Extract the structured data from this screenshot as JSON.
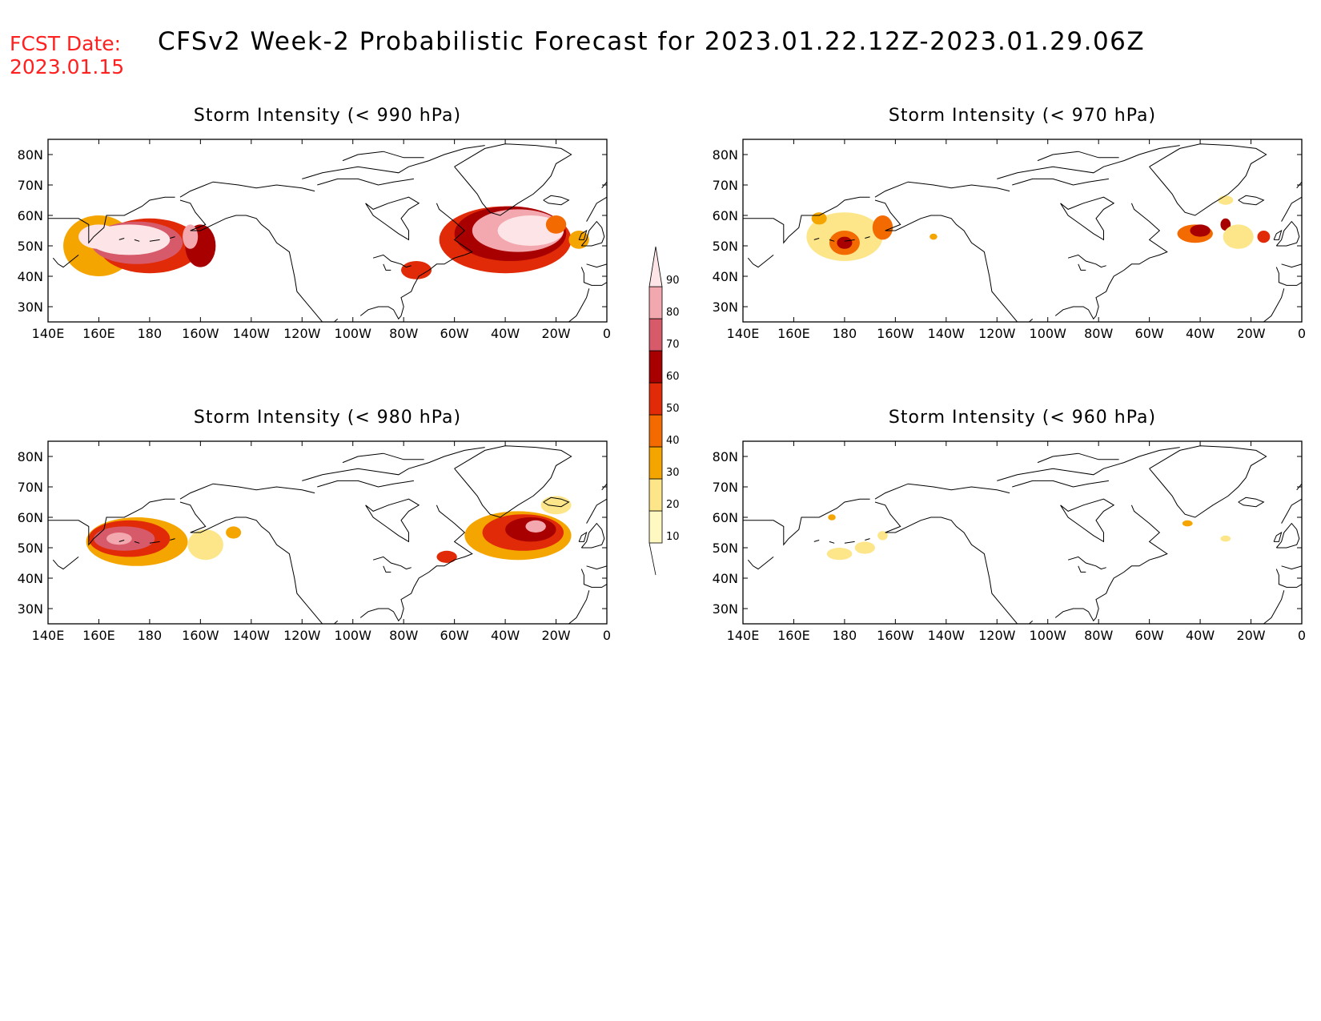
{
  "fcst_label": "FCST Date:",
  "fcst_date": "2023.01.15",
  "title": "CFSv2 Week-2 Probabilistic Forecast for 2023.01.22.12Z-2023.01.29.06Z",
  "colorbar": {
    "levels": [
      "10",
      "20",
      "30",
      "40",
      "50",
      "60",
      "70",
      "80",
      "90"
    ],
    "colors": [
      "#fff8c0",
      "#fde68a",
      "#f5a500",
      "#f36b00",
      "#e02a08",
      "#a80000",
      "#d65a6a",
      "#f2a8ae",
      "#fde4e6"
    ]
  },
  "axes": {
    "lon_ticks": [
      "140E",
      "160E",
      "180",
      "160W",
      "140W",
      "120W",
      "100W",
      "80W",
      "60W",
      "40W",
      "20W",
      "0"
    ],
    "lat_ticks": [
      "80N",
      "70N",
      "60N",
      "50N",
      "40N",
      "30N"
    ]
  },
  "panels": [
    {
      "id": "p990",
      "title": "Storm Intensity (< 990 hPa)",
      "blobs": [
        {
          "lon": 160,
          "lat": 50,
          "rlon": 14,
          "rlat": 10,
          "level": 2
        },
        {
          "lon": 180,
          "lat": 50,
          "rlon": 20,
          "rlat": 9,
          "level": 4
        },
        {
          "lon": 175,
          "lat": 51,
          "rlon": 18,
          "rlat": 7,
          "level": 6
        },
        {
          "lon": 172,
          "lat": 52,
          "rlon": 16,
          "rlat": 5,
          "level": 8
        },
        {
          "lon": 160,
          "lat": 53,
          "rlon": 8,
          "rlat": 4,
          "level": 8
        },
        {
          "lon": 200,
          "lat": 50,
          "rlon": 6,
          "rlat": 7,
          "level": 5
        },
        {
          "lon": 196,
          "lat": 53,
          "rlon": 3,
          "rlat": 4,
          "level": 7
        },
        {
          "lon": 285,
          "lat": 42,
          "rlon": 6,
          "rlat": 3,
          "level": 4
        },
        {
          "lon": 320,
          "lat": 52,
          "rlon": 26,
          "rlat": 11,
          "level": 4
        },
        {
          "lon": 322,
          "lat": 54,
          "rlon": 22,
          "rlat": 9,
          "level": 5
        },
        {
          "lon": 325,
          "lat": 55,
          "rlon": 18,
          "rlat": 7,
          "level": 7
        },
        {
          "lon": 330,
          "lat": 55,
          "rlon": 13,
          "rlat": 5,
          "level": 8
        },
        {
          "lon": 340,
          "lat": 57,
          "rlon": 4,
          "rlat": 3,
          "level": 3
        },
        {
          "lon": 349,
          "lat": 52,
          "rlon": 4,
          "rlat": 3,
          "level": 2
        }
      ]
    },
    {
      "id": "p970",
      "title": "Storm Intensity (< 970 hPa)",
      "blobs": [
        {
          "lon": 180,
          "lat": 53,
          "rlon": 15,
          "rlat": 8,
          "level": 1
        },
        {
          "lon": 180,
          "lat": 51,
          "rlon": 6,
          "rlat": 4,
          "level": 3
        },
        {
          "lon": 180,
          "lat": 51,
          "rlon": 3,
          "rlat": 2,
          "level": 5
        },
        {
          "lon": 195,
          "lat": 56,
          "rlon": 4,
          "rlat": 4,
          "level": 3
        },
        {
          "lon": 170,
          "lat": 59,
          "rlon": 3,
          "rlat": 2,
          "level": 2
        },
        {
          "lon": 215,
          "lat": 53,
          "rlon": 1.5,
          "rlat": 1,
          "level": 2
        },
        {
          "lon": 318,
          "lat": 54,
          "rlon": 7,
          "rlat": 3,
          "level": 3
        },
        {
          "lon": 320,
          "lat": 55,
          "rlon": 4,
          "rlat": 2,
          "level": 5
        },
        {
          "lon": 330,
          "lat": 57,
          "rlon": 2,
          "rlat": 2,
          "level": 5
        },
        {
          "lon": 335,
          "lat": 53,
          "rlon": 6,
          "rlat": 4,
          "level": 1
        },
        {
          "lon": 345,
          "lat": 53,
          "rlon": 2.5,
          "rlat": 2,
          "level": 4
        },
        {
          "lon": 330,
          "lat": 65,
          "rlon": 3,
          "rlat": 1.5,
          "level": 1
        }
      ]
    },
    {
      "id": "p980",
      "title": "Storm Intensity (< 980 hPa)",
      "blobs": [
        {
          "lon": 175,
          "lat": 52,
          "rlon": 20,
          "rlat": 8,
          "level": 2
        },
        {
          "lon": 172,
          "lat": 53,
          "rlon": 16,
          "rlat": 6,
          "level": 4
        },
        {
          "lon": 170,
          "lat": 53,
          "rlon": 12,
          "rlat": 4,
          "level": 6
        },
        {
          "lon": 168,
          "lat": 53,
          "rlon": 5,
          "rlat": 2,
          "level": 7
        },
        {
          "lon": 202,
          "lat": 51,
          "rlon": 7,
          "rlat": 5,
          "level": 1
        },
        {
          "lon": 213,
          "lat": 55,
          "rlon": 3,
          "rlat": 2,
          "level": 2
        },
        {
          "lon": 325,
          "lat": 54,
          "rlon": 21,
          "rlat": 8,
          "level": 2
        },
        {
          "lon": 327,
          "lat": 55,
          "rlon": 16,
          "rlat": 6,
          "level": 4
        },
        {
          "lon": 330,
          "lat": 56,
          "rlon": 10,
          "rlat": 4,
          "level": 5
        },
        {
          "lon": 332,
          "lat": 57,
          "rlon": 4,
          "rlat": 2,
          "level": 7
        },
        {
          "lon": 297,
          "lat": 47,
          "rlon": 4,
          "rlat": 2,
          "level": 4
        },
        {
          "lon": 340,
          "lat": 64,
          "rlon": 6,
          "rlat": 3,
          "level": 1
        }
      ]
    },
    {
      "id": "p960",
      "title": "Storm Intensity (< 960 hPa)",
      "blobs": [
        {
          "lon": 178,
          "lat": 48,
          "rlon": 5,
          "rlat": 2,
          "level": 1
        },
        {
          "lon": 188,
          "lat": 50,
          "rlon": 4,
          "rlat": 2,
          "level": 1
        },
        {
          "lon": 175,
          "lat": 60,
          "rlon": 1.5,
          "rlat": 1,
          "level": 2
        },
        {
          "lon": 195,
          "lat": 54,
          "rlon": 2,
          "rlat": 1.5,
          "level": 1
        },
        {
          "lon": 315,
          "lat": 58,
          "rlon": 2,
          "rlat": 1,
          "level": 2
        },
        {
          "lon": 330,
          "lat": 53,
          "rlon": 2,
          "rlat": 1,
          "level": 1
        }
      ]
    }
  ]
}
